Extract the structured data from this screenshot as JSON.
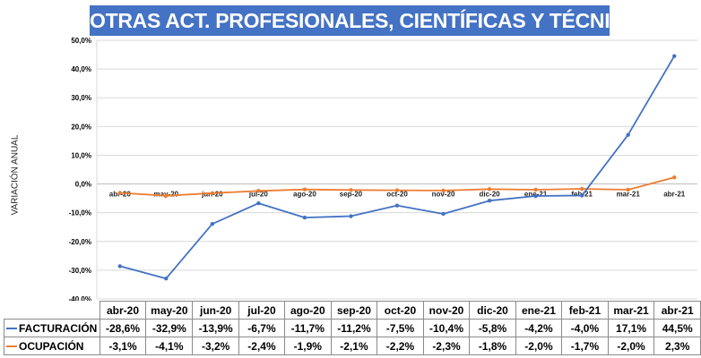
{
  "title": "OTRAS ACT. PROFESIONALES, CIENTÍFICAS Y TÉCNICAS",
  "colors": {
    "title_bg": "#4472c4",
    "facturacion": "#4472c4",
    "ocupacion": "#ed7d31"
  },
  "chart_data": {
    "type": "line",
    "title": "OTRAS ACT. PROFESIONALES, CIENTÍFICAS Y TÉCNICAS",
    "xlabel": "",
    "ylabel": "VARIACIÓN ANUAL",
    "ylim": [
      -40,
      50
    ],
    "yticks": [
      50,
      40,
      30,
      20,
      10,
      0,
      -10,
      -20,
      -30,
      -40
    ],
    "ytick_labels": [
      "50,0%",
      "40,0%",
      "30,0%",
      "20,0%",
      "10,0%",
      "0,0%",
      "-10,0%",
      "-20,0%",
      "-30,0%",
      "-40,0%"
    ],
    "categories": [
      "abr-20",
      "may-20",
      "jun-20",
      "jul-20",
      "ago-20",
      "sep-20",
      "oct-20",
      "nov-20",
      "dic-20",
      "ene-21",
      "feb-21",
      "mar-21",
      "abr-21"
    ],
    "series": [
      {
        "name": "FACTURACIÓN",
        "color": "#4472c4",
        "values": [
          -28.6,
          -32.9,
          -13.9,
          -6.7,
          -11.7,
          -11.2,
          -7.5,
          -10.4,
          -5.8,
          -4.2,
          -4.0,
          17.1,
          44.5
        ],
        "labels": [
          "-28,6%",
          "-32,9%",
          "-13,9%",
          "-6,7%",
          "-11,7%",
          "-11,2%",
          "-7,5%",
          "-10,4%",
          "-5,8%",
          "-4,2%",
          "-4,0%",
          "17,1%",
          "44,5%"
        ]
      },
      {
        "name": "OCUPACIÓN",
        "color": "#ed7d31",
        "values": [
          -3.1,
          -4.1,
          -3.2,
          -2.4,
          -1.9,
          -2.1,
          -2.2,
          -2.3,
          -1.8,
          -2.0,
          -1.7,
          -2.0,
          2.3
        ],
        "labels": [
          "-3,1%",
          "-4,1%",
          "-3,2%",
          "-2,4%",
          "-1,9%",
          "-2,1%",
          "-2,2%",
          "-2,3%",
          "-1,8%",
          "-2,0%",
          "-1,7%",
          "-2,0%",
          "2,3%"
        ]
      }
    ]
  }
}
